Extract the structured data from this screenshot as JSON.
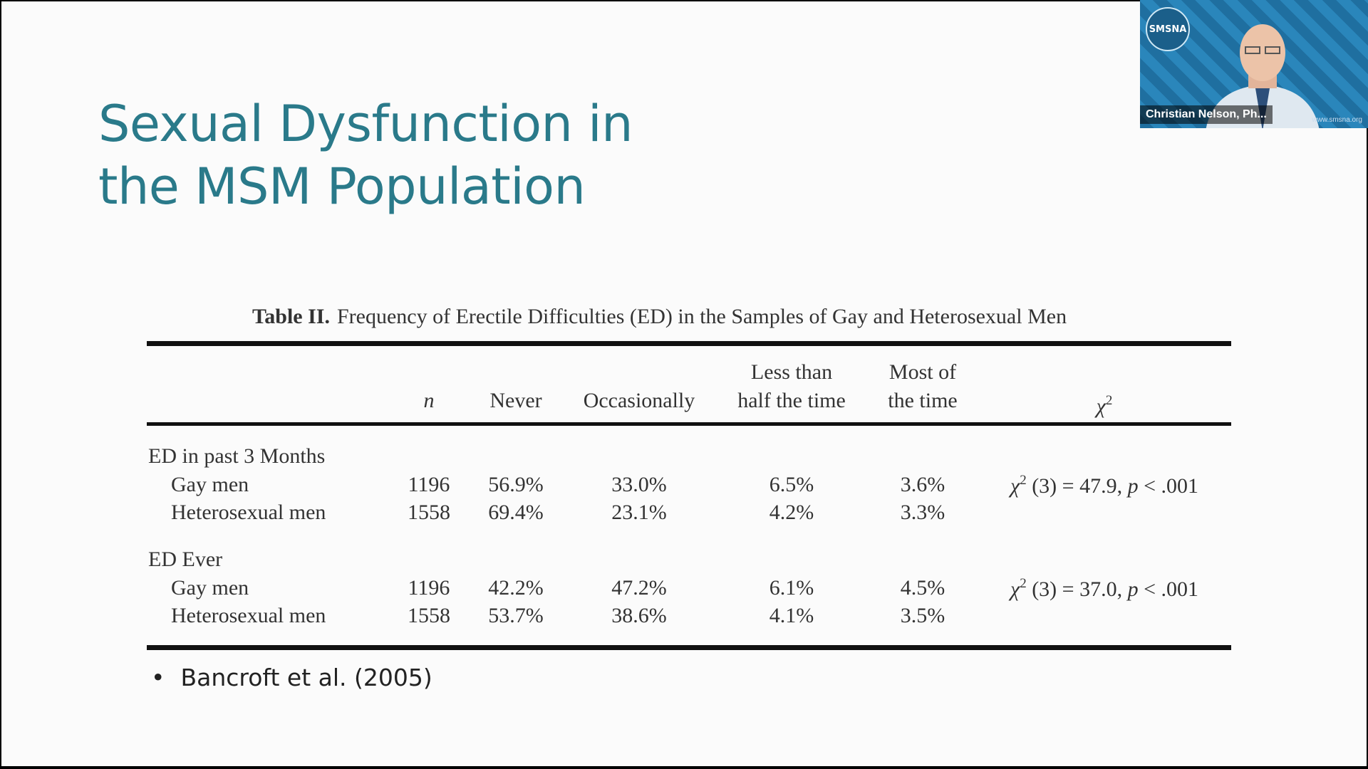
{
  "slide": {
    "title_line1": "Sexual Dysfunction in",
    "title_line2": "the MSM Population",
    "table_label": "Table II.",
    "table_caption": "Frequency of Erectile Difficulties (ED) in the Samples of Gay and Heterosexual Men",
    "headers": {
      "n": "n",
      "never": "Never",
      "occasionally": "Occasionally",
      "less_line1": "Less than",
      "less_line2": "half the time",
      "most_line1": "Most of",
      "most_line2": "the time",
      "chi": "χ",
      "chi_sup": "2"
    },
    "groups": [
      {
        "label": "ED in past 3 Months",
        "chi_stat": "χ",
        "chi_sup": "2",
        "chi_rest": " (3) = 47.9, ",
        "p": "p",
        "p_rest": " < .001",
        "rows": [
          {
            "label": "Gay men",
            "n": "1196",
            "never": "56.9%",
            "occasionally": "33.0%",
            "less": "6.5%",
            "most": "3.6%"
          },
          {
            "label": "Heterosexual men",
            "n": "1558",
            "never": "69.4%",
            "occasionally": "23.1%",
            "less": "4.2%",
            "most": "3.3%"
          }
        ]
      },
      {
        "label": "ED Ever",
        "chi_stat": "χ",
        "chi_sup": "2",
        "chi_rest": " (3) = 37.0, ",
        "p": "p",
        "p_rest": " < .001",
        "rows": [
          {
            "label": "Gay men",
            "n": "1196",
            "never": "42.2%",
            "occasionally": "47.2%",
            "less": "6.1%",
            "most": "4.5%"
          },
          {
            "label": "Heterosexual men",
            "n": "1558",
            "never": "53.7%",
            "occasionally": "38.6%",
            "less": "4.1%",
            "most": "3.5%"
          }
        ]
      }
    ],
    "bullet": "Bancroft et al. (2005)"
  },
  "video": {
    "logo_text": "SMSNA",
    "participant_name": "Christian Nelson, Ph...",
    "url": "www.smsna.org"
  },
  "colors": {
    "title": "#2a7a8a",
    "tile_bg": "#1f6fa0"
  }
}
